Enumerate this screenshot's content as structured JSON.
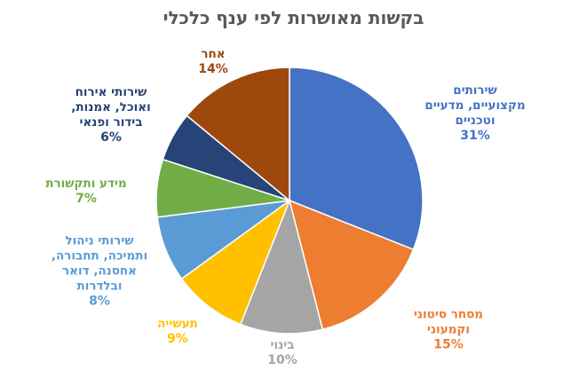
{
  "chart_data": {
    "type": "pie",
    "title": "בקשות מאושרות לפי ענף כלכלי",
    "slices": [
      {
        "label_lines": [
          "שירותים",
          "מקצועיים, מדעיים",
          "וטכניים"
        ],
        "percent_label": "31%",
        "value": 31,
        "color": "#4472C4"
      },
      {
        "label_lines": [
          "מסחר סיטוני",
          "וקמעוני"
        ],
        "percent_label": "15%",
        "value": 15,
        "color": "#ED7D31"
      },
      {
        "label_lines": [
          "בינוי"
        ],
        "percent_label": "10%",
        "value": 10,
        "color": "#A5A5A5"
      },
      {
        "label_lines": [
          "תעשייה"
        ],
        "percent_label": "9%",
        "value": 9,
        "color": "#FFC000"
      },
      {
        "label_lines": [
          "שירותי ניהול",
          "ותמיכה, תחבורה,",
          "אחסנה, דואר",
          "ובלדרות"
        ],
        "percent_label": "8%",
        "value": 8,
        "color": "#5B9BD5"
      },
      {
        "label_lines": [
          "מידע ותקשורת"
        ],
        "percent_label": "7%",
        "value": 7,
        "color": "#70AD47"
      },
      {
        "label_lines": [
          "שירותי אירוח",
          "ואוכל, אמנות,",
          "בידור ופנאי"
        ],
        "percent_label": "6%",
        "value": 6,
        "color": "#264478"
      },
      {
        "label_lines": [
          "אחר"
        ],
        "percent_label": "14%",
        "value": 14,
        "color": "#9E480E"
      }
    ],
    "legend": "none"
  }
}
